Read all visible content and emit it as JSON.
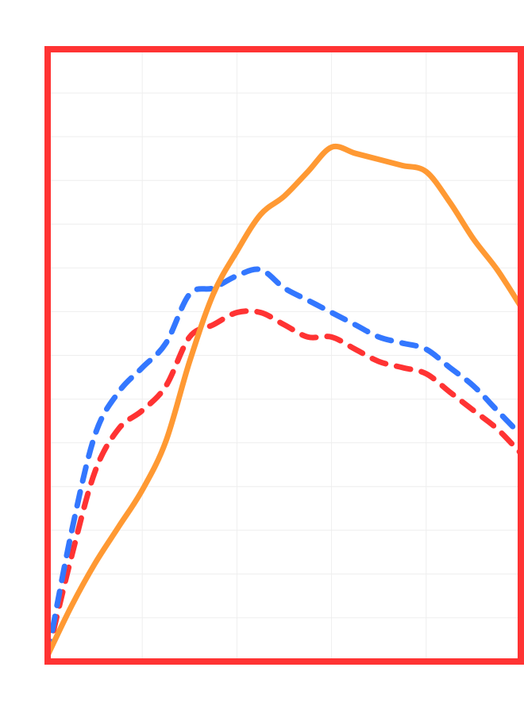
{
  "chart_data": {
    "type": "line",
    "title": "",
    "xlabel": "",
    "ylabel": "",
    "xlim": [
      0,
      100
    ],
    "ylim": [
      0,
      100
    ],
    "grid": true,
    "x": [
      0,
      5,
      10,
      15,
      20,
      25,
      30,
      35,
      40,
      45,
      50,
      55,
      60,
      65,
      70,
      75,
      80,
      85,
      90,
      95,
      100
    ],
    "series": [
      {
        "style": "solid",
        "color": "#ff9933",
        "values": [
          1,
          9,
          16,
          22,
          28,
          36,
          49,
          60,
          67,
          73,
          76,
          80,
          84,
          83,
          82,
          81,
          80,
          75,
          69,
          64,
          58
        ]
      },
      {
        "style": "dashed",
        "color": "#3377ff",
        "values": [
          1,
          21,
          37,
          44,
          48,
          52,
          60,
          61,
          63,
          64,
          61,
          59,
          57,
          55,
          53,
          52,
          51,
          48,
          45,
          41,
          37
        ]
      },
      {
        "style": "dashed",
        "color": "#ff3333",
        "values": [
          1,
          17,
          31,
          38,
          41,
          45,
          53,
          55,
          57,
          57,
          55,
          53,
          53,
          51,
          49,
          48,
          47,
          44,
          41,
          38,
          34
        ]
      }
    ],
    "frame_color": "#ff3333",
    "grid_color": "#eeeeee"
  }
}
